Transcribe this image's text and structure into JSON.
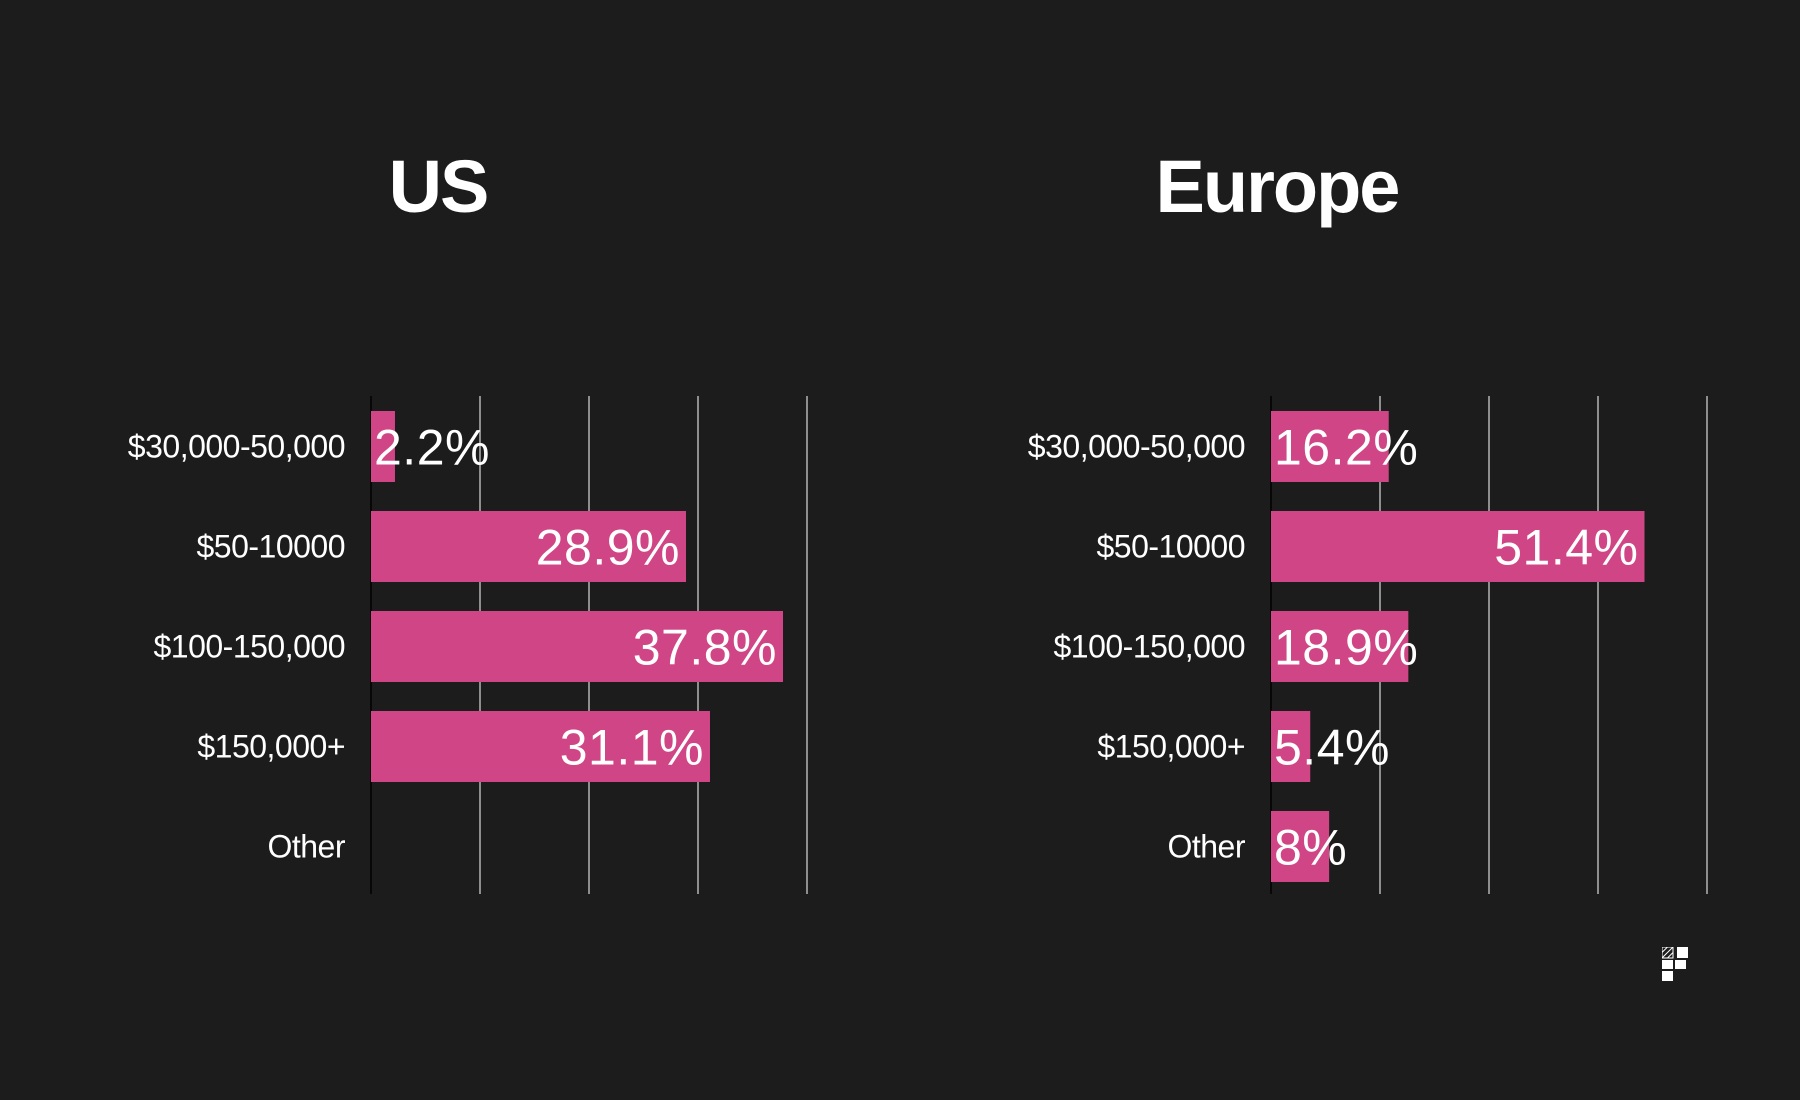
{
  "colors": {
    "background": "#1c1c1c",
    "bar": "#d04585",
    "text": "#ffffff",
    "gridline": "#d9d9d9",
    "axis": "#000000"
  },
  "logo": {
    "icon": "brand-logo-icon"
  },
  "chart_data": [
    {
      "type": "bar",
      "orientation": "horizontal",
      "title": "US",
      "categories": [
        "$30,000-50,000",
        "$50-10000",
        "$100-150,000",
        "$150,000+",
        "Other"
      ],
      "values": [
        2.2,
        28.9,
        37.8,
        31.1,
        null
      ],
      "value_labels": [
        "2.2%",
        "28.9%",
        "37.8%",
        "31.1%",
        ""
      ],
      "xlim": [
        0,
        40
      ],
      "gridlines": [
        10,
        20,
        30,
        40
      ],
      "grid": true,
      "xlabel": "",
      "ylabel": "",
      "legend": "none"
    },
    {
      "type": "bar",
      "orientation": "horizontal",
      "title": "Europe",
      "categories": [
        "$30,000-50,000",
        "$50-10000",
        "$100-150,000",
        "$150,000+",
        "Other"
      ],
      "values": [
        16.2,
        51.4,
        18.9,
        5.4,
        8
      ],
      "value_labels": [
        "16.2%",
        "51.4%",
        "18.9%",
        "5.4%",
        "8%"
      ],
      "xlim": [
        0,
        60
      ],
      "gridlines": [
        15,
        30,
        45,
        60
      ],
      "grid": true,
      "xlabel": "",
      "ylabel": "",
      "legend": "none"
    }
  ]
}
